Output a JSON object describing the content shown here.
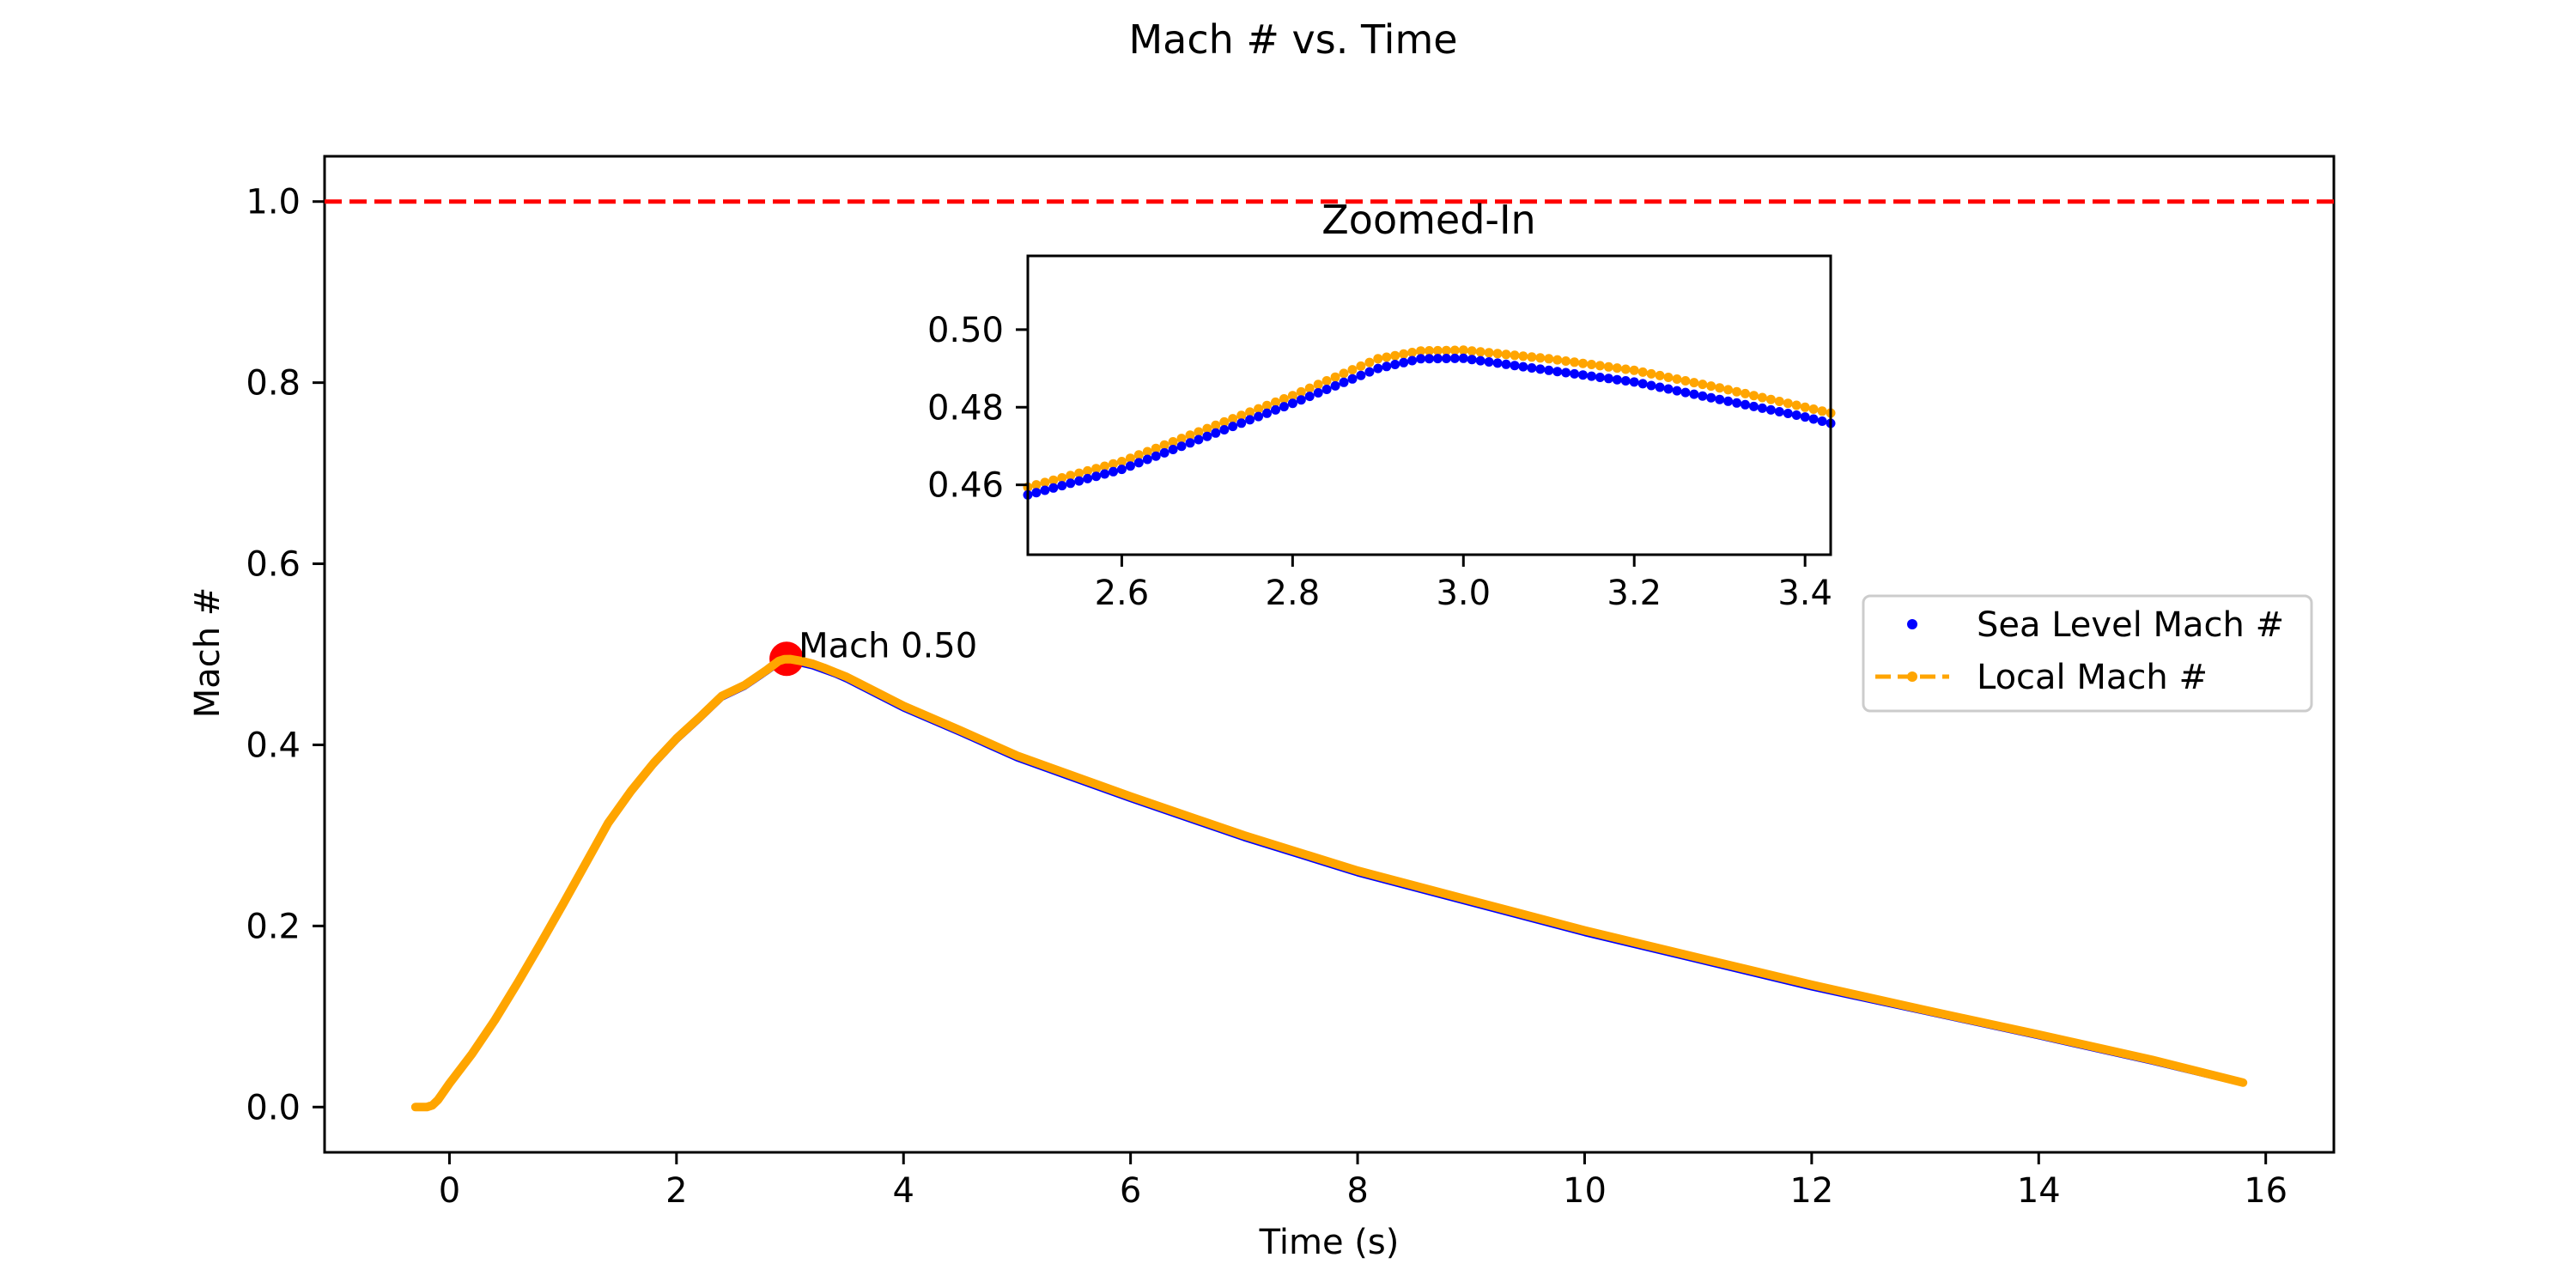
{
  "chart_data": {
    "type": "line",
    "title": "Mach # vs. Time",
    "xlabel": "Time (s)",
    "ylabel": "Mach #",
    "xlim": [
      -1.1,
      16.6
    ],
    "ylim": [
      -0.05,
      1.05
    ],
    "xticks": [
      0,
      2,
      4,
      6,
      8,
      10,
      12,
      14,
      16
    ],
    "yticks": [
      0.0,
      0.2,
      0.4,
      0.6,
      0.8,
      1.0
    ],
    "grid": false,
    "legend_position": "right",
    "reference_line": {
      "y": 1.0,
      "color": "#ff0000",
      "style": "dashed"
    },
    "peak_annotation": {
      "x": 2.97,
      "y": 0.495,
      "label": "Mach 0.50",
      "color": "#ff0000"
    },
    "series": [
      {
        "name": "Sea Level Mach #",
        "color": "#0000ff",
        "style": "dots",
        "x": [
          -0.3,
          -0.2,
          -0.15,
          -0.1,
          0.0,
          0.2,
          0.4,
          0.6,
          0.8,
          1.0,
          1.2,
          1.4,
          1.6,
          1.8,
          2.0,
          2.2,
          2.4,
          2.6,
          2.8,
          2.9,
          2.95,
          3.0,
          3.1,
          3.2,
          3.3,
          3.4,
          3.5,
          4.0,
          4.5,
          5.0,
          6.0,
          7.0,
          8.0,
          9.0,
          10.0,
          11.0,
          12.0,
          13.0,
          14.0,
          15.0,
          15.8
        ],
        "y": [
          0.0,
          0.0,
          0.002,
          0.008,
          0.025,
          0.058,
          0.095,
          0.135,
          0.178,
          0.222,
          0.267,
          0.312,
          0.347,
          0.378,
          0.405,
          0.428,
          0.452,
          0.464,
          0.481,
          0.49,
          0.4925,
          0.4926,
          0.4895,
          0.4865,
          0.482,
          0.4775,
          0.472,
          0.44,
          0.413,
          0.385,
          0.34,
          0.297,
          0.258,
          0.225,
          0.192,
          0.162,
          0.132,
          0.105,
          0.078,
          0.05,
          0.026
        ]
      },
      {
        "name": "Local Mach #",
        "color": "#ffa500",
        "style": "dashed-dots",
        "x": [
          -0.3,
          -0.2,
          -0.15,
          -0.1,
          0.0,
          0.2,
          0.4,
          0.6,
          0.8,
          1.0,
          1.2,
          1.4,
          1.6,
          1.8,
          2.0,
          2.2,
          2.4,
          2.6,
          2.8,
          2.9,
          2.95,
          3.0,
          3.1,
          3.2,
          3.3,
          3.4,
          3.5,
          4.0,
          4.5,
          5.0,
          6.0,
          7.0,
          8.0,
          9.0,
          10.0,
          11.0,
          12.0,
          13.0,
          14.0,
          15.0,
          15.8
        ],
        "y": [
          0.0,
          0.0,
          0.002,
          0.008,
          0.026,
          0.059,
          0.096,
          0.137,
          0.18,
          0.224,
          0.269,
          0.314,
          0.349,
          0.38,
          0.407,
          0.43,
          0.454,
          0.466,
          0.483,
          0.4925,
          0.4945,
          0.4947,
          0.4925,
          0.4895,
          0.485,
          0.48,
          0.475,
          0.443,
          0.416,
          0.388,
          0.343,
          0.3,
          0.261,
          0.228,
          0.195,
          0.165,
          0.135,
          0.107,
          0.08,
          0.052,
          0.027
        ]
      }
    ],
    "inset": {
      "title": "Zoomed-In",
      "xlim": [
        2.49,
        3.43
      ],
      "ylim": [
        0.442,
        0.519
      ],
      "xticks": [
        2.6,
        2.8,
        3.0,
        3.2,
        3.4
      ],
      "yticks": [
        0.46,
        0.48,
        0.5
      ]
    }
  }
}
